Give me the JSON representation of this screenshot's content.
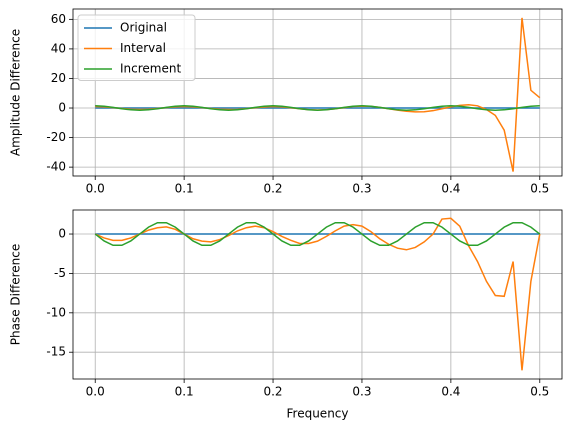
{
  "chart_data": [
    {
      "type": "line",
      "ylabel": "Amplitude Difference",
      "grid": true,
      "legend": "upper left",
      "x": [
        0,
        0.01,
        0.02,
        0.03,
        0.04,
        0.05,
        0.06,
        0.07,
        0.08,
        0.09,
        0.1,
        0.11,
        0.12,
        0.13,
        0.14,
        0.15,
        0.16,
        0.17,
        0.18,
        0.19,
        0.2,
        0.21,
        0.22,
        0.23,
        0.24,
        0.25,
        0.26,
        0.27,
        0.28,
        0.29,
        0.3,
        0.31,
        0.32,
        0.33,
        0.34,
        0.35,
        0.36,
        0.37,
        0.38,
        0.39,
        0.4,
        0.41,
        0.42,
        0.43,
        0.44,
        0.45,
        0.46,
        0.47,
        0.48,
        0.49,
        0.5
      ],
      "xlim": [
        -0.025,
        0.525
      ],
      "xticks": [
        {
          "value": 0,
          "label": "0.0"
        },
        0.1,
        0.2,
        0.3,
        0.4,
        0.5
      ],
      "ylim": [
        -46,
        67
      ],
      "yticks": [
        -40,
        -20,
        0,
        20,
        40,
        60
      ],
      "series": [
        {
          "name": "Original",
          "color": "#1f77b4",
          "values": [
            0,
            0,
            0,
            0,
            0,
            0,
            0,
            0,
            0,
            0,
            0,
            0,
            0,
            0,
            0,
            0,
            0,
            0,
            0,
            0,
            0,
            0,
            0,
            0,
            0,
            0,
            0,
            0,
            0,
            0,
            0,
            0,
            0,
            0,
            0,
            0,
            0,
            0,
            0,
            0,
            0,
            0,
            0,
            0,
            0,
            0,
            0,
            0,
            0,
            0,
            0
          ]
        },
        {
          "name": "Interval",
          "color": "#ff7f0e",
          "values": [
            1,
            0.8,
            0.3,
            -0.3,
            -0.8,
            -1,
            -0.8,
            -0.3,
            0.3,
            0.8,
            1,
            0.8,
            0.3,
            -0.3,
            -0.8,
            -1,
            -0.9,
            -0.4,
            0.2,
            0.7,
            1,
            0.8,
            0.2,
            -0.5,
            -1.1,
            -1.3,
            -1.1,
            -0.5,
            0.3,
            1,
            1.3,
            1.1,
            0.4,
            -0.5,
            -1.4,
            -2.2,
            -2.6,
            -2.5,
            -1.8,
            -0.5,
            0.8,
            1.8,
            2.2,
            1.5,
            -1,
            -5,
            -15,
            -43,
            61,
            12,
            7
          ]
        },
        {
          "name": "Increment",
          "color": "#2ca02c",
          "values": [
            1.5,
            1.21,
            0.46,
            -0.46,
            -1.21,
            -1.5,
            -1.21,
            -0.46,
            0.46,
            1.21,
            1.5,
            1.21,
            0.46,
            -0.46,
            -1.21,
            -1.5,
            -1.21,
            -0.46,
            0.46,
            1.21,
            1.5,
            1.21,
            0.46,
            -0.46,
            -1.21,
            -1.5,
            -1.21,
            -0.46,
            0.46,
            1.21,
            1.5,
            1.21,
            0.46,
            -0.46,
            -1.21,
            -1.5,
            -1.21,
            -0.46,
            0.46,
            1.21,
            1.5,
            1.21,
            0.46,
            -0.46,
            -1.21,
            -1.5,
            -1.21,
            -0.46,
            0.46,
            1.21,
            1.5
          ]
        }
      ]
    },
    {
      "type": "line",
      "xlabel": "Frequency",
      "ylabel": "Phase Difference",
      "grid": true,
      "x": [
        0,
        0.01,
        0.02,
        0.03,
        0.04,
        0.05,
        0.06,
        0.07,
        0.08,
        0.09,
        0.1,
        0.11,
        0.12,
        0.13,
        0.14,
        0.15,
        0.16,
        0.17,
        0.18,
        0.19,
        0.2,
        0.21,
        0.22,
        0.23,
        0.24,
        0.25,
        0.26,
        0.27,
        0.28,
        0.29,
        0.3,
        0.31,
        0.32,
        0.33,
        0.34,
        0.35,
        0.36,
        0.37,
        0.38,
        0.39,
        0.4,
        0.41,
        0.42,
        0.43,
        0.44,
        0.45,
        0.46,
        0.47,
        0.48,
        0.49,
        0.5
      ],
      "xlim": [
        -0.025,
        0.525
      ],
      "xticks": [
        {
          "value": 0,
          "label": "0.0"
        },
        0.1,
        0.2,
        0.3,
        0.4,
        0.5
      ],
      "ylim": [
        -18.4,
        3.05
      ],
      "yticks": [
        -15,
        -10,
        -5,
        0
      ],
      "series": [
        {
          "color": "#1f77b4",
          "values": [
            0,
            0,
            0,
            0,
            0,
            0,
            0,
            0,
            0,
            0,
            0,
            0,
            0,
            0,
            0,
            0,
            0,
            0,
            0,
            0,
            0,
            0,
            0,
            0,
            0,
            0,
            0,
            0,
            0,
            0,
            0,
            0,
            0,
            0,
            0,
            0,
            0,
            0,
            0,
            0,
            0,
            0,
            0,
            0,
            0,
            0,
            0,
            0,
            0,
            0,
            0
          ]
        },
        {
          "color": "#ff7f0e",
          "values": [
            0,
            -0.5,
            -0.8,
            -0.8,
            -0.5,
            0,
            0.5,
            0.8,
            0.9,
            0.6,
            0,
            -0.6,
            -0.9,
            -1,
            -0.7,
            -0.2,
            0.4,
            0.8,
            1,
            0.8,
            0.3,
            -0.3,
            -0.8,
            -1.2,
            -1.2,
            -0.9,
            -0.3,
            0.4,
            1,
            1.2,
            1,
            0.3,
            -0.6,
            -1.3,
            -1.8,
            -2,
            -1.7,
            -1,
            0,
            1.9,
            2,
            1,
            -1.5,
            -3.5,
            -6,
            -7.8,
            -7.9,
            -3.5,
            -17.3,
            -6,
            0
          ]
        },
        {
          "color": "#2ca02c",
          "values": [
            0,
            -0.88,
            -1.43,
            -1.43,
            -0.88,
            0,
            0.88,
            1.43,
            1.43,
            0.88,
            0,
            -0.88,
            -1.43,
            -1.43,
            -0.88,
            0,
            0.88,
            1.43,
            1.43,
            0.88,
            0,
            -0.88,
            -1.43,
            -1.43,
            -0.88,
            0,
            0.88,
            1.43,
            1.43,
            0.88,
            0,
            -0.88,
            -1.43,
            -1.43,
            -0.88,
            0,
            0.88,
            1.43,
            1.43,
            0.88,
            0,
            -0.88,
            -1.43,
            -1.43,
            -0.88,
            0,
            0.88,
            1.43,
            1.43,
            0.88,
            0
          ]
        }
      ]
    }
  ]
}
